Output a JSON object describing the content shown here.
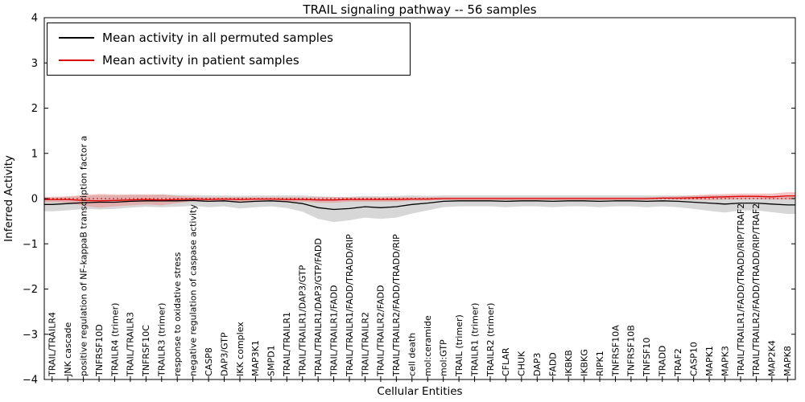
{
  "chart_data": {
    "type": "line",
    "title": "TRAIL signaling pathway -- 56 samples",
    "xlabel": "Cellular Entities",
    "ylabel": "Inferred Activity",
    "ylim": [
      -4,
      4
    ],
    "yticks": [
      -4,
      -3,
      -2,
      -1,
      0,
      1,
      2,
      3,
      4
    ],
    "grid": false,
    "legend_position": "upper left",
    "zero_line": {
      "value": 0,
      "style": "dotted",
      "color": "#cc0000"
    },
    "categories": [
      "TRAIL/TRAILR4",
      "JNK cascade",
      "positive regulation of NF-kappaB transcription factor a",
      "TNFRSF10D",
      "TRAILR4 (trimer)",
      "TRAIL/TRAILR3",
      "TNFRSF10C",
      "TRAILR3 (trimer)",
      "response to oxidative stress",
      "negative regulation of caspase activity",
      "CASP8",
      "DAP3/GTP",
      "IKK complex",
      "MAP3K1",
      "SMPD1",
      "TRAIL/TRAILR1",
      "TRAIL/TRAILR1/DAP3/GTP",
      "TRAIL/TRAILR1/DAP3/GTP/FADD",
      "TRAIL/TRAILR1/FADD",
      "TRAIL/TRAILR1/FADD/TRADD/RIP",
      "TRAIL/TRAILR2",
      "TRAIL/TRAILR2/FADD",
      "TRAIL/TRAILR2/FADD/TRADD/RIP",
      "cell death",
      "mol:ceramide",
      "mol:GTP",
      "TRAIL (trimer)",
      "TRAILR1 (trimer)",
      "TRAILR2 (trimer)",
      "CFLAR",
      "CHUK",
      "DAP3",
      "FADD",
      "IKBKB",
      "IKBKG",
      "RIPK1",
      "TNFRSF10A",
      "TNFRSF10B",
      "TNFSF10",
      "TRADD",
      "TRAF2",
      "CASP10",
      "MAPK1",
      "MAPK3",
      "TRAIL/TRAILR1/FADD/TRADD/RIP/TRAF2",
      "TRAIL/TRAILR2/FADD/TRADD/RIP/TRAF2",
      "MAP2K4",
      "MAPK8"
    ],
    "series": [
      {
        "name": "Mean activity in all permuted samples",
        "color": "#000000",
        "band_color": "#c9c9c9",
        "band_opacity": 0.75,
        "values": [
          -0.13,
          -0.11,
          -0.09,
          -0.08,
          -0.08,
          -0.06,
          -0.05,
          -0.05,
          -0.05,
          -0.04,
          -0.06,
          -0.05,
          -0.08,
          -0.06,
          -0.05,
          -0.07,
          -0.11,
          -0.2,
          -0.24,
          -0.22,
          -0.18,
          -0.2,
          -0.18,
          -0.13,
          -0.1,
          -0.06,
          -0.05,
          -0.05,
          -0.05,
          -0.06,
          -0.05,
          -0.05,
          -0.06,
          -0.05,
          -0.05,
          -0.06,
          -0.05,
          -0.05,
          -0.06,
          -0.05,
          -0.06,
          -0.08,
          -0.1,
          -0.12,
          -0.1,
          -0.1,
          -0.12,
          -0.14
        ],
        "band_upper": [
          0.02,
          0.04,
          0.05,
          0.08,
          0.07,
          0.08,
          0.08,
          0.09,
          0.08,
          0.08,
          0.07,
          0.07,
          0.06,
          0.07,
          0.07,
          0.07,
          0.07,
          0.05,
          0.04,
          0.04,
          0.06,
          0.05,
          0.06,
          0.07,
          0.06,
          0.07,
          0.07,
          0.07,
          0.07,
          0.07,
          0.07,
          0.07,
          0.07,
          0.07,
          0.07,
          0.07,
          0.07,
          0.07,
          0.07,
          0.07,
          0.07,
          0.07,
          0.07,
          0.07,
          0.06,
          0.06,
          0.06,
          0.06
        ],
        "band_lower": [
          -0.28,
          -0.26,
          -0.23,
          -0.24,
          -0.23,
          -0.2,
          -0.18,
          -0.19,
          -0.18,
          -0.16,
          -0.19,
          -0.17,
          -0.22,
          -0.19,
          -0.17,
          -0.21,
          -0.29,
          -0.45,
          -0.52,
          -0.48,
          -0.42,
          -0.45,
          -0.42,
          -0.33,
          -0.26,
          -0.19,
          -0.17,
          -0.17,
          -0.17,
          -0.19,
          -0.17,
          -0.17,
          -0.19,
          -0.17,
          -0.17,
          -0.19,
          -0.17,
          -0.17,
          -0.19,
          -0.17,
          -0.19,
          -0.23,
          -0.27,
          -0.31,
          -0.26,
          -0.26,
          -0.3,
          -0.34
        ]
      },
      {
        "name": "Mean activity in patient samples",
        "color": "#dd0000",
        "band_color": "#ee8888",
        "band_opacity": 0.5,
        "values": [
          -0.02,
          -0.02,
          -0.04,
          -0.05,
          -0.04,
          -0.03,
          -0.02,
          -0.03,
          -0.02,
          -0.01,
          -0.02,
          -0.01,
          -0.02,
          -0.01,
          -0.01,
          -0.02,
          -0.02,
          -0.03,
          -0.03,
          -0.02,
          -0.02,
          -0.02,
          -0.02,
          -0.01,
          -0.01,
          0,
          0,
          0,
          0,
          0,
          0,
          0,
          0,
          0,
          0,
          0,
          0,
          0,
          0,
          0.01,
          0.01,
          0.02,
          0.03,
          0.04,
          0.05,
          0.05,
          0.04,
          0.06
        ],
        "band_upper": [
          0.04,
          0.05,
          0.08,
          0.1,
          0.09,
          0.09,
          0.09,
          0.09,
          0.06,
          0.04,
          0.03,
          0.03,
          0.03,
          0.03,
          0.03,
          0.03,
          0.03,
          0.03,
          0.03,
          0.03,
          0.03,
          0.03,
          0.03,
          0.03,
          0.03,
          0.03,
          0.03,
          0.03,
          0.03,
          0.03,
          0.03,
          0.03,
          0.03,
          0.03,
          0.03,
          0.03,
          0.03,
          0.03,
          0.03,
          0.04,
          0.05,
          0.07,
          0.09,
          0.1,
          0.11,
          0.11,
          0.11,
          0.14
        ],
        "band_lower": [
          -0.08,
          -0.09,
          -0.16,
          -0.2,
          -0.17,
          -0.15,
          -0.13,
          -0.15,
          -0.1,
          -0.06,
          -0.07,
          -0.05,
          -0.07,
          -0.05,
          -0.05,
          -0.07,
          -0.07,
          -0.09,
          -0.09,
          -0.07,
          -0.07,
          -0.07,
          -0.07,
          -0.05,
          -0.05,
          -0.03,
          -0.03,
          -0.03,
          -0.03,
          -0.03,
          -0.03,
          -0.03,
          -0.03,
          -0.03,
          -0.03,
          -0.03,
          -0.03,
          -0.03,
          -0.03,
          -0.02,
          -0.03,
          -0.03,
          -0.03,
          -0.02,
          -0.01,
          -0.01,
          -0.02,
          -0.02
        ]
      }
    ]
  }
}
